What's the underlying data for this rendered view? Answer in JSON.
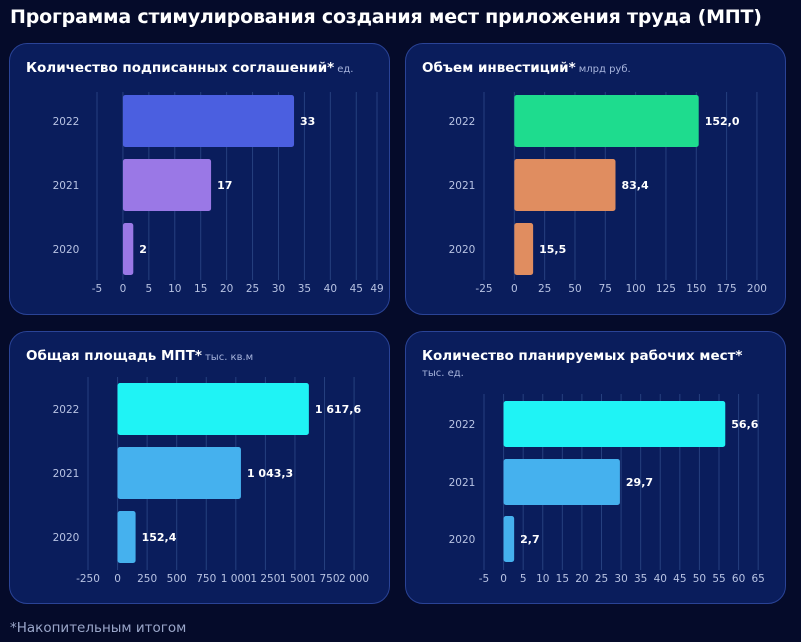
{
  "page": {
    "title": "Программа стимулирования создания мест приложения труда (МПТ)",
    "footnote": "*Накопительным итогом"
  },
  "colors": {
    "background": "#050b2a",
    "panel": "#0a1d5c",
    "grid": "#26407f",
    "axis_text": "#b8c3e3"
  },
  "chart_data": [
    {
      "type": "bar",
      "orientation": "horizontal",
      "title": "Количество подписанных соглашений*",
      "unit": "ед.",
      "categories": [
        "2022",
        "2021",
        "2020"
      ],
      "values": [
        33,
        17,
        2
      ],
      "value_labels": [
        "33",
        "17",
        "2"
      ],
      "bar_colors": [
        "#4b5fe0",
        "#9a78e6",
        "#9a78e6"
      ],
      "xlim": [
        -5,
        49
      ],
      "xticks": [
        -5,
        0,
        5,
        10,
        15,
        20,
        25,
        30,
        35,
        40,
        45,
        49
      ],
      "xtick_labels": [
        "-5",
        "0",
        "5",
        "10",
        "15",
        "20",
        "25",
        "30",
        "35",
        "40",
        "45",
        "49"
      ],
      "grid": true
    },
    {
      "type": "bar",
      "orientation": "horizontal",
      "title": "Объем инвестиций*",
      "unit": "млрд руб.",
      "categories": [
        "2022",
        "2021",
        "2020"
      ],
      "values": [
        152.0,
        83.4,
        15.5
      ],
      "value_labels": [
        "152,0",
        "83,4",
        "15,5"
      ],
      "bar_colors": [
        "#1edc8e",
        "#e08d60",
        "#e08d60"
      ],
      "xlim": [
        -25,
        205
      ],
      "xticks": [
        -25,
        0,
        25,
        50,
        75,
        100,
        125,
        150,
        175,
        200
      ],
      "xtick_labels": [
        "-25",
        "0",
        "25",
        "50",
        "75",
        "100",
        "125",
        "150",
        "175",
        "200"
      ],
      "grid": true
    },
    {
      "type": "bar",
      "orientation": "horizontal",
      "title": "Общая площадь МПТ*",
      "unit": "тыс. кв.м",
      "categories": [
        "2022",
        "2021",
        "2020"
      ],
      "values": [
        1617.6,
        1043.3,
        152.4
      ],
      "value_labels": [
        "1 617,6",
        "1 043,3",
        "152,4"
      ],
      "bar_colors": [
        "#1ff3f5",
        "#45b1ee",
        "#45b1ee"
      ],
      "xlim": [
        -250,
        2050
      ],
      "xticks": [
        -250,
        0,
        250,
        500,
        750,
        1000,
        1250,
        1500,
        1750,
        2000
      ],
      "xtick_labels": [
        "-250",
        "0",
        "250",
        "500",
        "750",
        "1 000",
        "1 250",
        "1 500",
        "1 750",
        "2 000"
      ],
      "grid": true
    },
    {
      "type": "bar",
      "orientation": "horizontal",
      "title": "Количество планируемых рабочих мест*",
      "unit": "тыс. ед.",
      "categories": [
        "2022",
        "2021",
        "2020"
      ],
      "values": [
        56.6,
        29.7,
        2.7
      ],
      "value_labels": [
        "56,6",
        "29,7",
        "2,7"
      ],
      "bar_colors": [
        "#1ff3f5",
        "#45b1ee",
        "#45b1ee"
      ],
      "xlim": [
        -5,
        67
      ],
      "xticks": [
        -5,
        0,
        5,
        10,
        15,
        20,
        25,
        30,
        35,
        40,
        45,
        50,
        55,
        60,
        65
      ],
      "xtick_labels": [
        "-5",
        "0",
        "5",
        "10",
        "15",
        "20",
        "25",
        "30",
        "35",
        "40",
        "45",
        "50",
        "55",
        "60",
        "65"
      ],
      "grid": true
    }
  ]
}
